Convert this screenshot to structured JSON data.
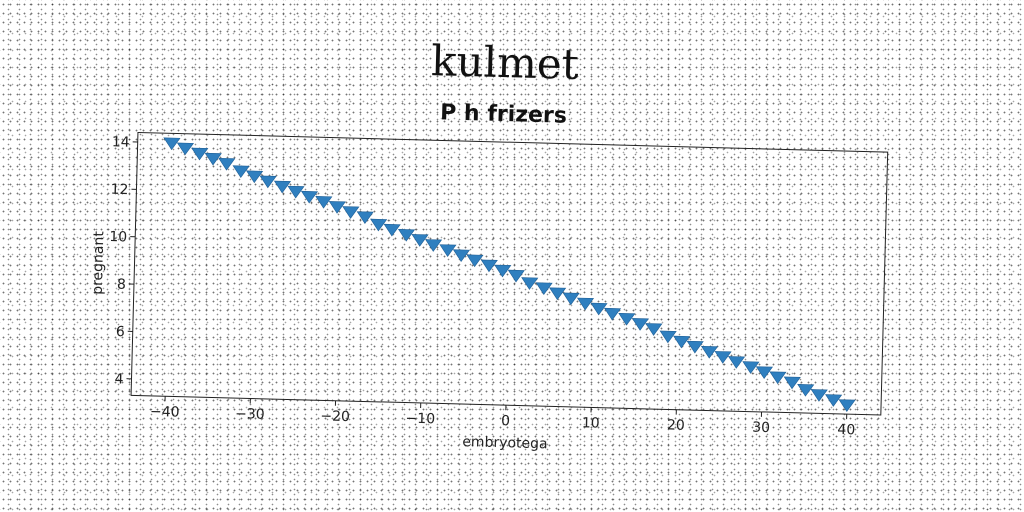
{
  "chart_data": {
    "type": "scatter",
    "suptitle": "kulmet",
    "title": "P h frizers",
    "xlabel": "embryotega",
    "ylabel": "pregnant",
    "xlim": [
      -44,
      44
    ],
    "ylim": [
      3.3,
      14.4
    ],
    "xticks": [
      -40,
      -30,
      -20,
      -10,
      0,
      10,
      20,
      30,
      40
    ],
    "yticks": [
      4,
      6,
      8,
      10,
      12,
      14
    ],
    "grid": false,
    "marker": "triangle-down",
    "color": "#2f7fbf",
    "series": [
      {
        "x": [
          -40.0,
          -38.4,
          -36.7,
          -35.1,
          -33.5,
          -31.8,
          -30.2,
          -28.6,
          -26.9,
          -25.3,
          -23.7,
          -22.0,
          -20.4,
          -18.8,
          -17.1,
          -15.5,
          -13.9,
          -12.2,
          -10.6,
          -9.0,
          -7.3,
          -5.7,
          -4.1,
          -2.4,
          -0.8,
          0.8,
          2.4,
          4.1,
          5.7,
          7.3,
          9.0,
          10.6,
          12.2,
          13.9,
          15.5,
          17.1,
          18.8,
          20.4,
          22.0,
          23.7,
          25.3,
          26.9,
          28.6,
          30.2,
          31.8,
          33.5,
          35.1,
          36.7,
          38.4,
          40.0
        ],
        "y": [
          14.0,
          13.8,
          13.6,
          13.4,
          13.2,
          12.9,
          12.7,
          12.5,
          12.3,
          12.1,
          11.9,
          11.7,
          11.5,
          11.3,
          11.1,
          10.8,
          10.6,
          10.4,
          10.2,
          10.0,
          9.8,
          9.6,
          9.4,
          9.2,
          9.0,
          8.8,
          8.5,
          8.3,
          8.1,
          7.9,
          7.7,
          7.5,
          7.3,
          7.1,
          6.9,
          6.7,
          6.4,
          6.2,
          6.0,
          5.8,
          5.6,
          5.4,
          5.2,
          5.0,
          4.8,
          4.6,
          4.3,
          4.1,
          3.9,
          3.7
        ]
      }
    ]
  }
}
